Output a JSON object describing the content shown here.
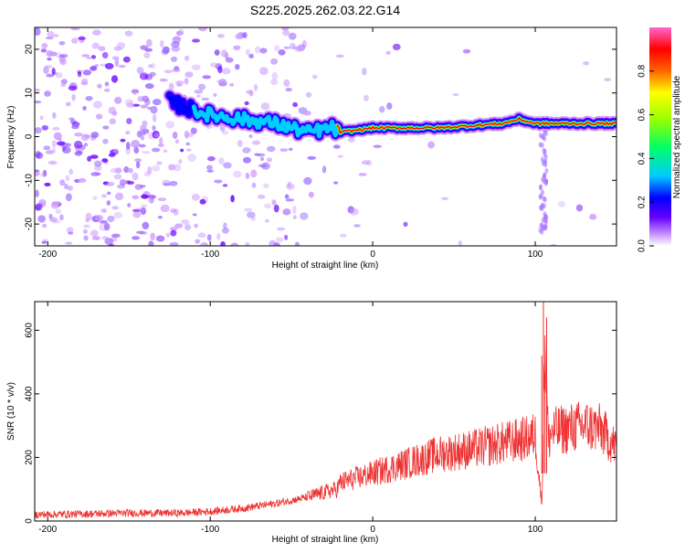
{
  "title": "S225.2025.262.03.22.G14",
  "colors": {
    "signal": "#ee3333",
    "noise": "#8a2be2"
  },
  "chart_data": [
    {
      "type": "heatmap",
      "xlabel": "Height of straight line (km)",
      "ylabel": "Frequency (Hz)",
      "xlim": [
        -208,
        150
      ],
      "ylim": [
        -25,
        25
      ],
      "xticks": [
        -200,
        -100,
        0,
        100
      ],
      "yticks": [
        -20,
        -10,
        0,
        10,
        20
      ],
      "grid": false,
      "ridge": {
        "x": [
          -125,
          -110,
          -100,
          -80,
          -60,
          -40,
          -25,
          -20,
          0,
          20,
          40,
          60,
          80,
          90,
          100,
          110,
          150
        ],
        "frequency": [
          8,
          6,
          5,
          4,
          3,
          1,
          2,
          1,
          2,
          2,
          2,
          2.5,
          3,
          4,
          3,
          3,
          3
        ]
      },
      "colorbar": {
        "label": "Normalized spectral amplitude",
        "ticks": [
          0.0,
          0.2,
          0.4,
          0.6,
          0.8
        ],
        "range": [
          0,
          1
        ],
        "colormap": [
          "#ffffff",
          "#cc99ff",
          "#6600ff",
          "#0000ff",
          "#00ccff",
          "#00ff66",
          "#99ff00",
          "#ffff00",
          "#ff6600",
          "#ff0000",
          "#ff66cc"
        ]
      }
    },
    {
      "type": "line",
      "xlabel": "Height of straight line (km)",
      "ylabel": "SNR (10 * v/v)",
      "xlim": [
        -208,
        150
      ],
      "ylim": [
        0,
        690
      ],
      "xticks": [
        -200,
        -100,
        0,
        100
      ],
      "yticks": [
        0,
        200,
        400,
        600
      ],
      "grid": false,
      "series": [
        {
          "x": [
            -208,
            -180,
            -150,
            -120,
            -100,
            -80,
            -60,
            -40,
            -30,
            -22,
            -20,
            -10,
            0,
            20,
            40,
            60,
            80,
            95,
            100,
            104,
            106,
            108,
            110,
            120,
            130,
            140,
            150
          ],
          "y": [
            20,
            22,
            25,
            25,
            30,
            40,
            55,
            75,
            90,
            100,
            120,
            135,
            150,
            180,
            210,
            225,
            245,
            260,
            270,
            50,
            600,
            250,
            280,
            290,
            300,
            290,
            230
          ]
        }
      ]
    }
  ]
}
